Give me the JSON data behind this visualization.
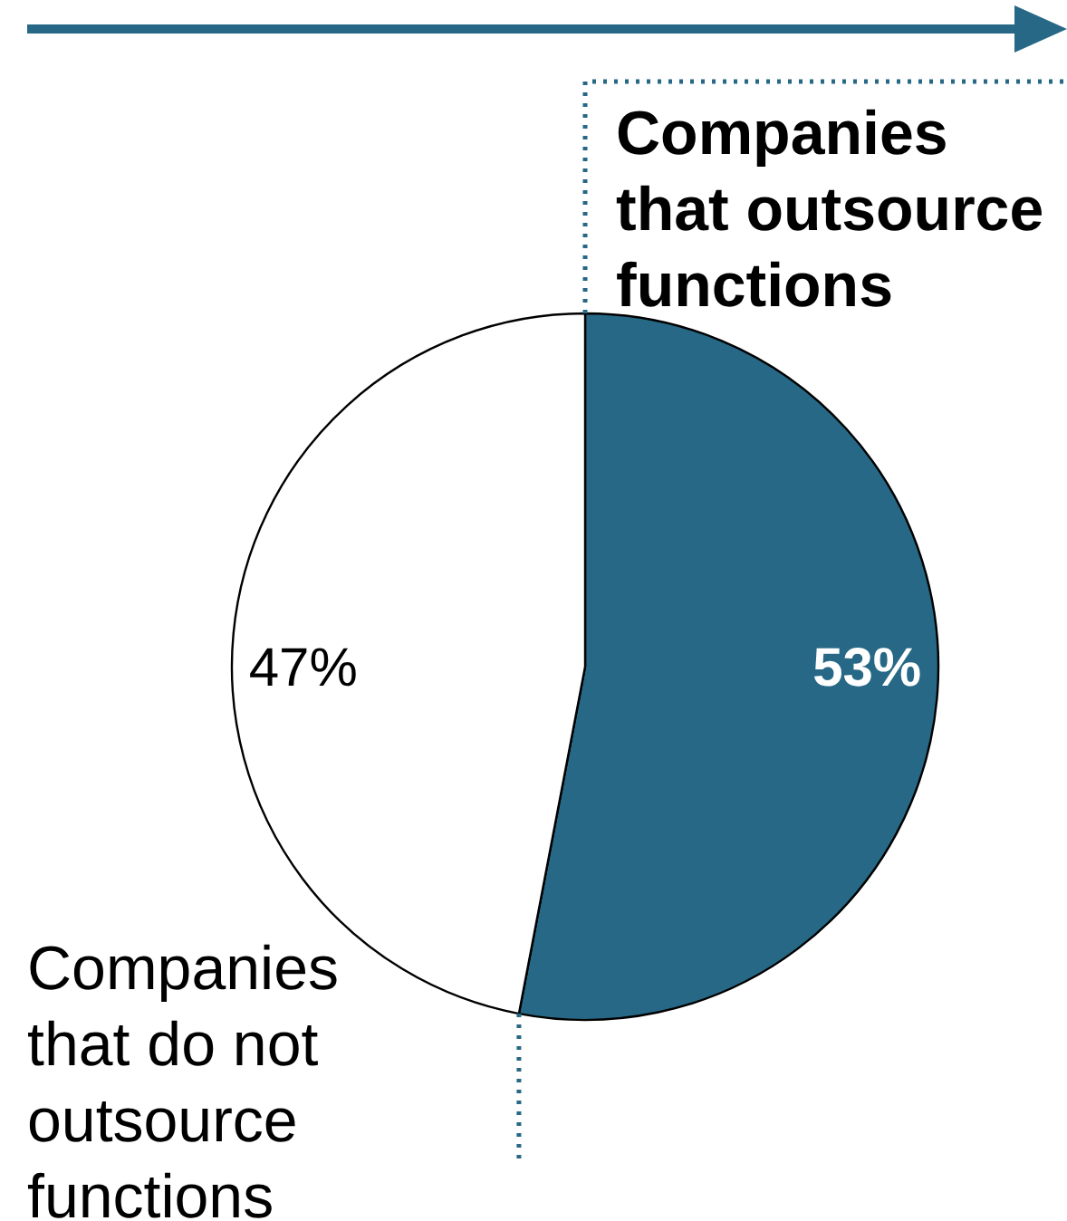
{
  "chart_data": {
    "type": "pie",
    "categories": [
      "Companies that outsource functions",
      "Companies that do not outsource functions"
    ],
    "values": [
      53,
      47
    ],
    "colors": [
      "#266885",
      "#ffffff"
    ],
    "value_labels": [
      "53%",
      "47%"
    ]
  }
}
